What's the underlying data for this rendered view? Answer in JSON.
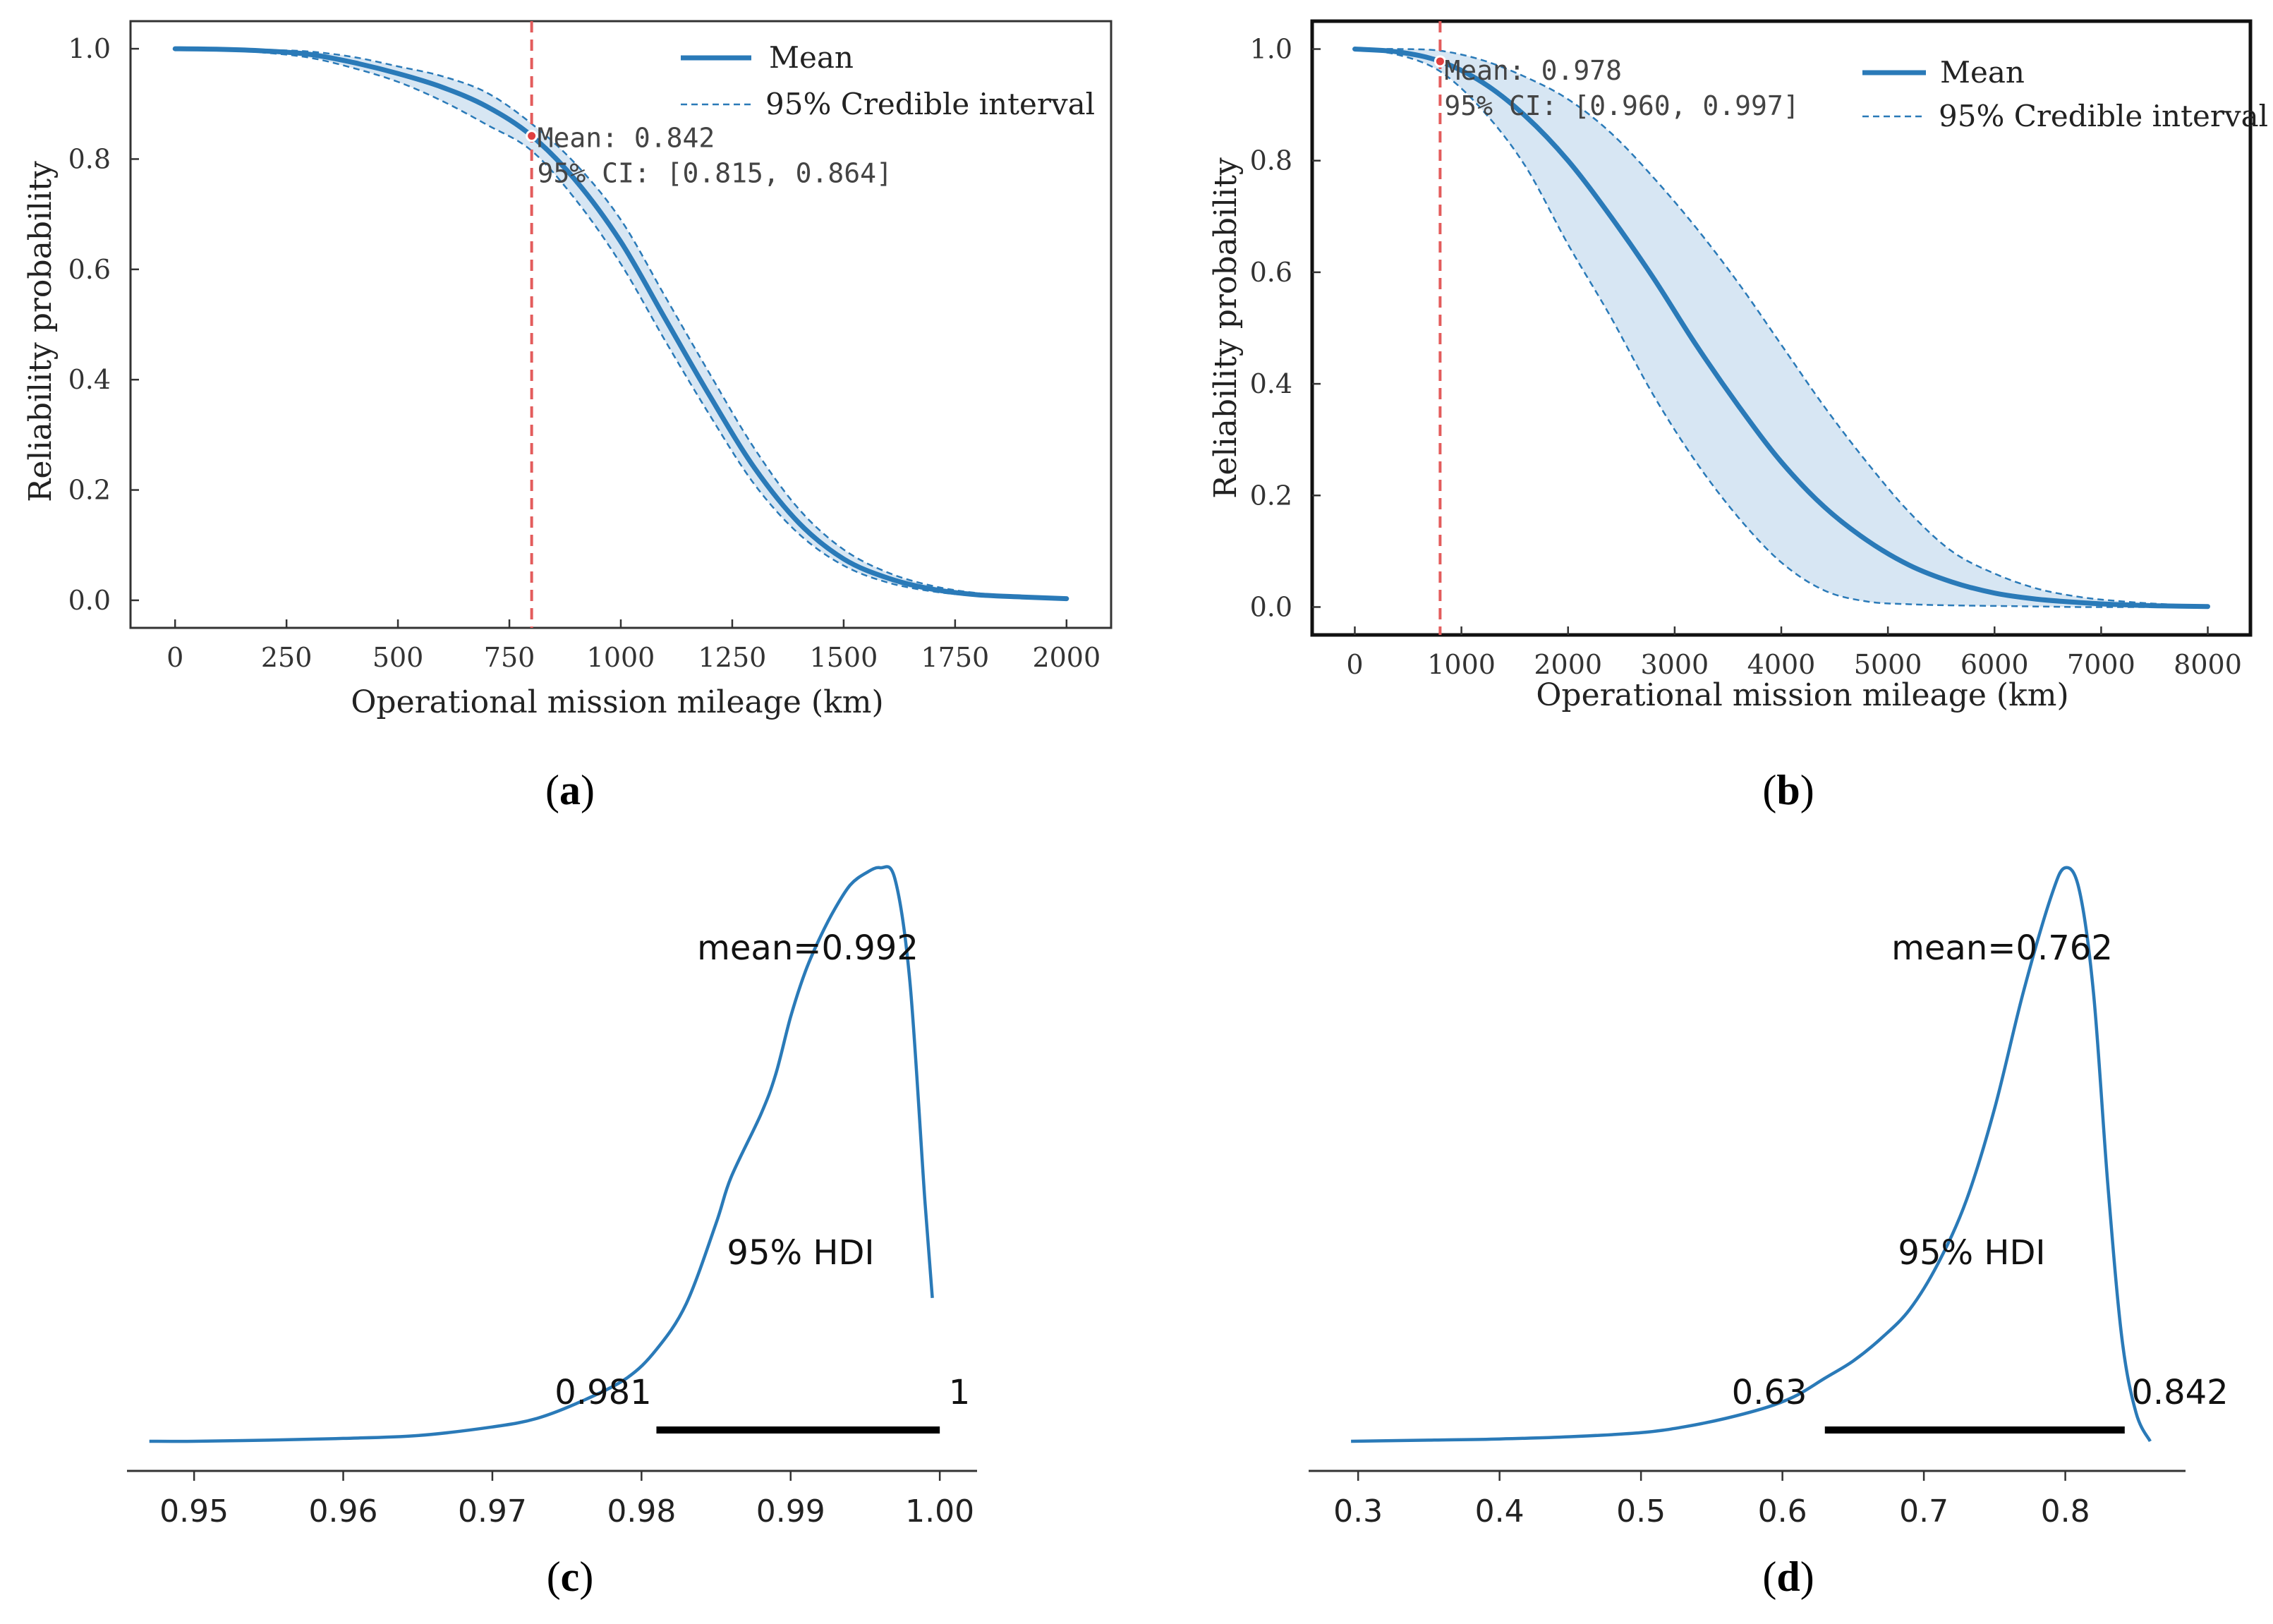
{
  "colors": {
    "line": "#2a7ab8",
    "band_fill": "#c9ddef",
    "marker": "#e04040",
    "vline": "#e35c5c",
    "hdi_bar": "#000000"
  },
  "panel_labels": [
    "(a)",
    "(b)",
    "(c)",
    "(d)"
  ],
  "panel_letters": [
    "a",
    "b",
    "c",
    "d"
  ],
  "chart_data": [
    {
      "type": "line",
      "panel": "a",
      "xlabel": "Operational mission mileage (km)",
      "ylabel": "Reliability probability",
      "xlim": [
        -100,
        2100
      ],
      "ylim": [
        -0.05,
        1.05
      ],
      "xticks": [
        0,
        250,
        500,
        750,
        1000,
        1250,
        1500,
        1750,
        2000
      ],
      "xtick_labels": [
        "0",
        "250",
        "500",
        "750",
        "1000",
        "1250",
        "1500",
        "1750",
        "2000"
      ],
      "yticks": [
        0.0,
        0.2,
        0.4,
        0.6,
        0.8,
        1.0
      ],
      "ytick_labels": [
        "0.0",
        "0.2",
        "0.4",
        "0.6",
        "0.8",
        "1.0"
      ],
      "x": [
        0,
        100,
        200,
        300,
        400,
        500,
        600,
        700,
        800,
        900,
        1000,
        1100,
        1200,
        1300,
        1400,
        1500,
        1600,
        1700,
        1800,
        1900,
        2000
      ],
      "mean": [
        1.0,
        0.999,
        0.996,
        0.99,
        0.975,
        0.955,
        0.93,
        0.895,
        0.842,
        0.76,
        0.65,
        0.51,
        0.37,
        0.24,
        0.14,
        0.075,
        0.04,
        0.02,
        0.01,
        0.006,
        0.003
      ],
      "ci_lower": [
        1.0,
        0.998,
        0.993,
        0.984,
        0.965,
        0.94,
        0.905,
        0.862,
        0.815,
        0.725,
        0.61,
        0.47,
        0.335,
        0.21,
        0.12,
        0.063,
        0.032,
        0.016,
        0.008,
        0.004,
        0.002
      ],
      "ci_upper": [
        1.0,
        1.0,
        0.998,
        0.995,
        0.985,
        0.968,
        0.95,
        0.92,
        0.864,
        0.79,
        0.69,
        0.55,
        0.41,
        0.275,
        0.165,
        0.092,
        0.05,
        0.026,
        0.013,
        0.008,
        0.005
      ],
      "vline_x": 800,
      "marker": {
        "x": 800,
        "y": 0.842
      },
      "legend": {
        "mean_label": "Mean",
        "ci_label": "95% Credible interval",
        "position": "top-right"
      },
      "annotation": {
        "line1": "Mean: 0.842",
        "line2": "95% CI: [0.815, 0.864]"
      }
    },
    {
      "type": "line",
      "panel": "b",
      "xlabel": "Operational mission mileage (km)",
      "ylabel": "Reliability probability",
      "xlim": [
        -400,
        8400
      ],
      "ylim": [
        -0.05,
        1.05
      ],
      "xticks": [
        0,
        1000,
        2000,
        3000,
        4000,
        5000,
        6000,
        7000,
        8000
      ],
      "xtick_labels": [
        "0",
        "1000",
        "2000",
        "3000",
        "4000",
        "5000",
        "6000",
        "7000",
        "8000"
      ],
      "yticks": [
        0.0,
        0.2,
        0.4,
        0.6,
        0.8,
        1.0
      ],
      "ytick_labels": [
        "0.0",
        "0.2",
        "0.4",
        "0.6",
        "0.8",
        "1.0"
      ],
      "x": [
        0,
        400,
        800,
        1200,
        1600,
        2000,
        2400,
        2800,
        3200,
        3600,
        4000,
        4400,
        4800,
        5200,
        5600,
        6000,
        6400,
        6800,
        7200,
        7600,
        8000
      ],
      "mean": [
        1.0,
        0.995,
        0.978,
        0.94,
        0.88,
        0.8,
        0.7,
        0.59,
        0.47,
        0.36,
        0.26,
        0.18,
        0.12,
        0.075,
        0.045,
        0.025,
        0.014,
        0.008,
        0.004,
        0.002,
        0.001
      ],
      "ci_lower": [
        1.0,
        0.99,
        0.96,
        0.89,
        0.79,
        0.65,
        0.52,
        0.38,
        0.26,
        0.16,
        0.08,
        0.03,
        0.01,
        0.005,
        0.003,
        0.002,
        0.001,
        0.0,
        0.0,
        0.0,
        0.0
      ],
      "ci_upper": [
        1.0,
        1.0,
        0.997,
        0.98,
        0.95,
        0.91,
        0.85,
        0.77,
        0.68,
        0.58,
        0.47,
        0.36,
        0.26,
        0.17,
        0.1,
        0.06,
        0.033,
        0.018,
        0.01,
        0.005,
        0.002
      ],
      "vline_x": 800,
      "marker": {
        "x": 800,
        "y": 0.978
      },
      "legend": {
        "mean_label": "Mean",
        "ci_label": "95% Credible interval",
        "position": "top-right"
      },
      "annotation": {
        "line1": "Mean: 0.978",
        "line2": "95% CI: [0.960, 0.997]"
      }
    },
    {
      "type": "area",
      "panel": "c",
      "xlim": [
        0.9455,
        1.0025
      ],
      "xticks": [
        0.95,
        0.96,
        0.97,
        0.98,
        0.99,
        1.0
      ],
      "xtick_labels": [
        "0.95",
        "0.96",
        "0.97",
        "0.98",
        "0.99",
        "1.00"
      ],
      "x": [
        0.947,
        0.95,
        0.955,
        0.96,
        0.965,
        0.97,
        0.973,
        0.976,
        0.979,
        0.981,
        0.983,
        0.985,
        0.986,
        0.988,
        0.989,
        0.99,
        0.991,
        0.992,
        0.993,
        0.994,
        0.995,
        0.996,
        0.997,
        0.998,
        0.999,
        0.9995
      ],
      "density": [
        0.0,
        0.0,
        0.002,
        0.005,
        0.01,
        0.025,
        0.04,
        0.07,
        0.11,
        0.16,
        0.24,
        0.38,
        0.46,
        0.57,
        0.64,
        0.74,
        0.82,
        0.88,
        0.93,
        0.97,
        0.99,
        1.0,
        0.98,
        0.8,
        0.42,
        0.25
      ],
      "mean_label": "mean=0.992",
      "hdi_label": "95% HDI",
      "hdi": [
        0.981,
        1.0
      ],
      "hdi_low_label": "0.981",
      "hdi_high_label": "1"
    },
    {
      "type": "area",
      "panel": "d",
      "xlim": [
        0.265,
        0.885
      ],
      "xticks": [
        0.3,
        0.4,
        0.5,
        0.6,
        0.7,
        0.8
      ],
      "xtick_labels": [
        "0.3",
        "0.4",
        "0.5",
        "0.6",
        "0.7",
        "0.8"
      ],
      "x": [
        0.295,
        0.35,
        0.4,
        0.45,
        0.5,
        0.53,
        0.56,
        0.59,
        0.61,
        0.63,
        0.65,
        0.67,
        0.69,
        0.71,
        0.73,
        0.75,
        0.77,
        0.79,
        0.8,
        0.81,
        0.82,
        0.83,
        0.84,
        0.85,
        0.86
      ],
      "density": [
        0.0,
        0.002,
        0.004,
        0.008,
        0.015,
        0.025,
        0.04,
        0.06,
        0.08,
        0.11,
        0.14,
        0.18,
        0.23,
        0.31,
        0.42,
        0.58,
        0.78,
        0.95,
        1.0,
        0.96,
        0.78,
        0.45,
        0.18,
        0.05,
        0.0
      ],
      "mean_label": "mean=0.762",
      "hdi_label": "95% HDI",
      "hdi": [
        0.63,
        0.842
      ],
      "hdi_low_label": "0.63",
      "hdi_high_label": "0.842"
    }
  ]
}
